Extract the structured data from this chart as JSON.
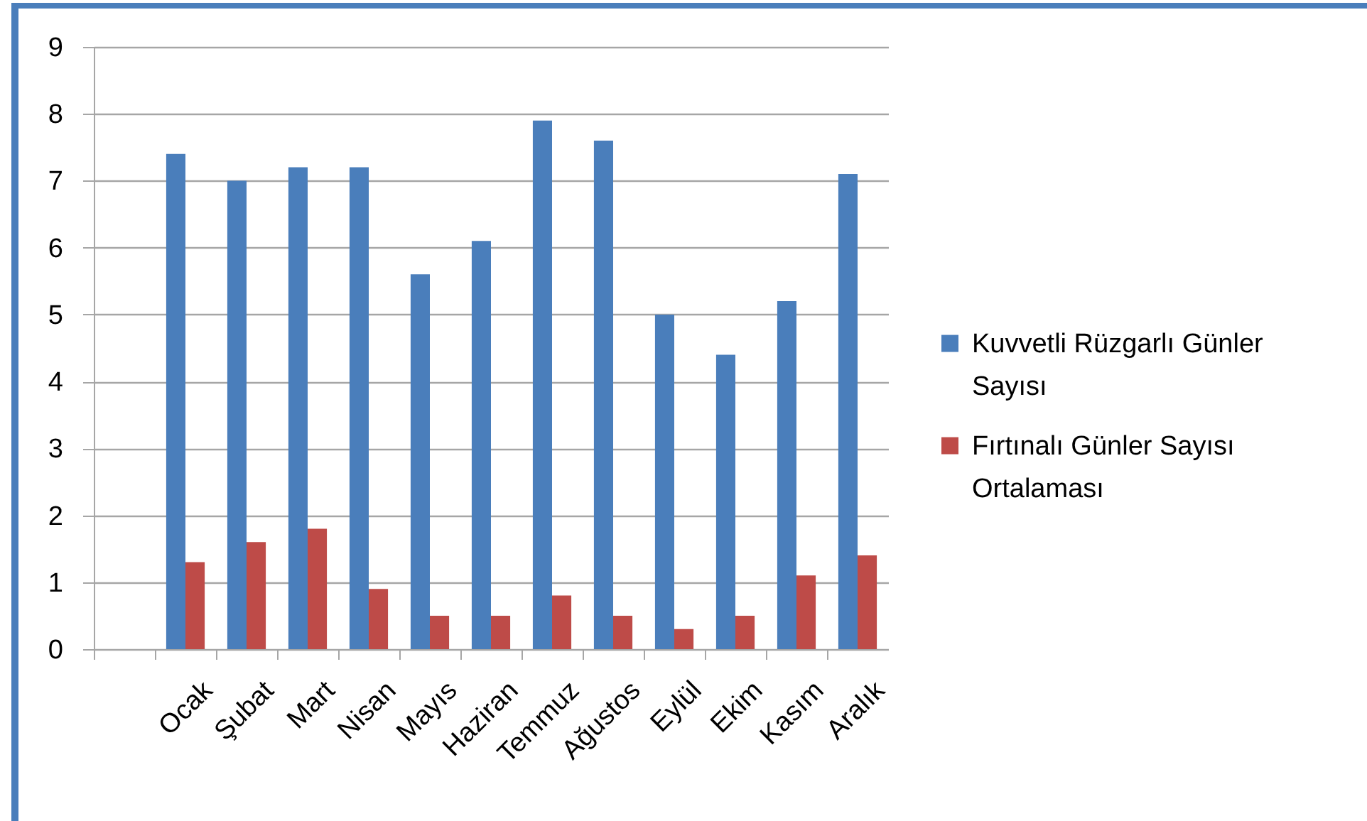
{
  "chart_data": {
    "type": "bar",
    "categories": [
      null,
      "Ocak",
      "Şubat",
      "Mart",
      "Nisan",
      "Mayıs",
      "Haziran",
      "Temmuz",
      "Ağustos",
      "Eylül",
      "Ekim",
      "Kasım",
      "Aralık"
    ],
    "series": [
      {
        "name": "Kuvvetli Rüzgarlı Günler Sayısı",
        "color": "#4a7ebb",
        "values": [
          null,
          7.4,
          7.0,
          7.2,
          7.2,
          5.6,
          6.1,
          7.9,
          7.6,
          5.0,
          4.4,
          5.2,
          7.1
        ]
      },
      {
        "name": "Fırtınalı Günler Sayısı Ortalaması",
        "color": "#be4b48",
        "values": [
          null,
          1.3,
          1.6,
          1.8,
          0.9,
          0.5,
          0.5,
          0.8,
          0.5,
          0.3,
          0.5,
          1.1,
          1.4
        ]
      }
    ],
    "ylim": [
      0,
      9
    ],
    "yticks": [
      0,
      1,
      2,
      3,
      4,
      5,
      6,
      7,
      8,
      9
    ],
    "grid": "y",
    "legend": "right"
  }
}
